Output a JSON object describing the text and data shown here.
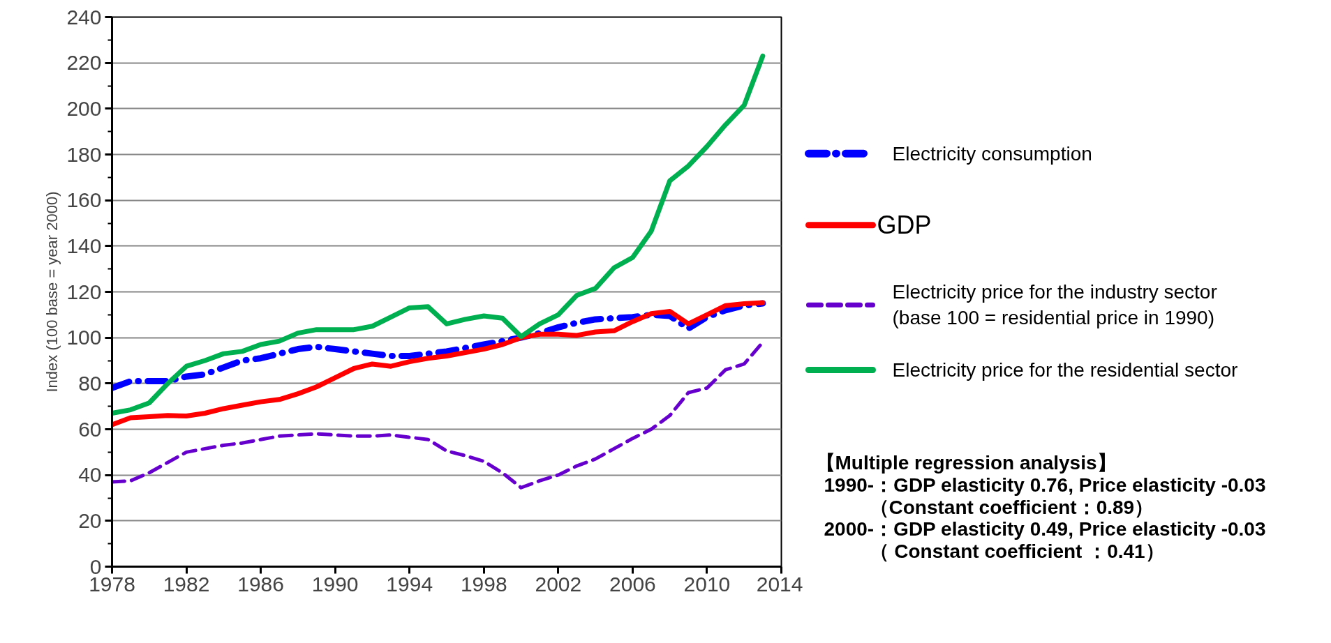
{
  "chart_data": {
    "type": "line",
    "ylabel": "Index (100 base = year 2000)",
    "x": [
      1978,
      1979,
      1980,
      1981,
      1982,
      1983,
      1984,
      1985,
      1986,
      1987,
      1988,
      1989,
      1990,
      1991,
      1992,
      1993,
      1994,
      1995,
      1996,
      1997,
      1998,
      1999,
      2000,
      2001,
      2002,
      2003,
      2004,
      2005,
      2006,
      2007,
      2008,
      2009,
      2010,
      2011,
      2012,
      2013
    ],
    "series": [
      {
        "name": "Electricity consumption",
        "color": "#0000ff",
        "line_style": "dashdot",
        "values": [
          78,
          81,
          81,
          81,
          83,
          84,
          87,
          90,
          91,
          93,
          95,
          96,
          95,
          94,
          93,
          92,
          92,
          93,
          94,
          95.5,
          97,
          98.5,
          100,
          102,
          104.5,
          106.5,
          108,
          108.5,
          109,
          110,
          109.5,
          104,
          109,
          112,
          114,
          115
        ]
      },
      {
        "name": "GDP",
        "color": "#ff0000",
        "line_style": "solid",
        "values": [
          62,
          65,
          65.5,
          66,
          65.8,
          67,
          69,
          70.5,
          72,
          73,
          75.5,
          78.5,
          82.5,
          86.5,
          88.5,
          87.5,
          89.5,
          91,
          92,
          93.5,
          95,
          97,
          100,
          101.5,
          101.5,
          101,
          102.5,
          103,
          107,
          110.5,
          111.5,
          106,
          110,
          114,
          114.8,
          115.3
        ]
      },
      {
        "name": "Electricity price for the industry sector\n(base 100 = residential price in 1990)",
        "color": "#6600cc",
        "line_style": "dashed",
        "values": [
          37,
          37.5,
          41,
          45.5,
          50,
          51.5,
          53,
          54,
          55.5,
          57,
          57.5,
          58,
          57.5,
          57,
          57,
          57.5,
          56.5,
          55.5,
          50.5,
          48.5,
          46,
          41,
          34.5,
          37.5,
          40,
          44,
          47,
          51.5,
          56,
          60,
          66,
          76,
          78,
          86,
          88.5,
          98
        ]
      },
      {
        "name": "Electricity price for the residential sector",
        "color": "#00b050",
        "line_style": "solid",
        "values": [
          67,
          68.5,
          71.5,
          80,
          87.5,
          90,
          93,
          94,
          97,
          98.5,
          102,
          103.5,
          103.5,
          103.5,
          105,
          109,
          113,
          113.5,
          106,
          108,
          109.5,
          108.5,
          100.5,
          106,
          110,
          118.5,
          121.5,
          130.5,
          135,
          146.5,
          168.5,
          175,
          183.5,
          193,
          201.5,
          223
        ]
      }
    ],
    "xlim": [
      1978,
      2014
    ],
    "xticks": [
      1978,
      1982,
      1986,
      1990,
      1994,
      1998,
      2002,
      2006,
      2010,
      2014
    ],
    "ylim": [
      0,
      240
    ],
    "yticks": [
      0,
      20,
      40,
      60,
      80,
      100,
      120,
      140,
      160,
      180,
      200,
      220,
      240
    ],
    "grid": "y",
    "legend": "right",
    "marker": "none",
    "annotations": [
      "【Multiple regression analysis】",
      "1990-：GDP elasticity 0.76, Price elasticity -0.03",
      "（Constant coefficient：0.89）",
      "2000-：GDP elasticity 0.49, Price elasticity -0.03",
      "（ Constant coefficient  ：0.41）"
    ]
  }
}
